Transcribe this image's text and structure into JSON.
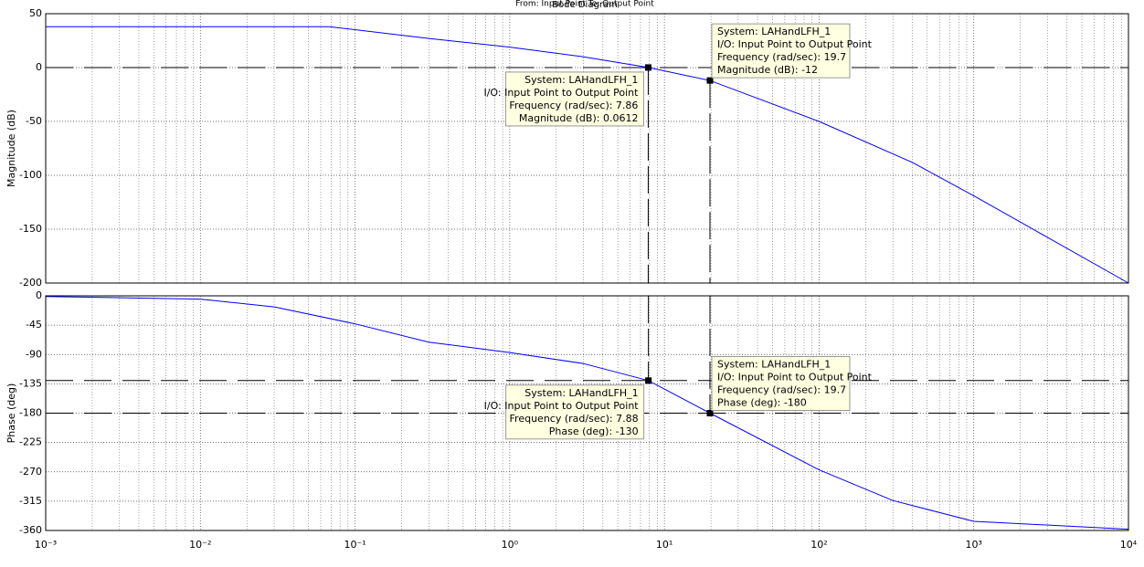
{
  "chart_data": [
    {
      "type": "line",
      "title": "Bode Diagram",
      "subtitle": "From: Input Point  To: Output Point",
      "ylabel": "Magnitude (dB)",
      "x": [
        0.001,
        0.01,
        0.068,
        0.3,
        1,
        3,
        7.86,
        19.7,
        100,
        400,
        1000,
        10000
      ],
      "values": [
        38,
        38,
        38,
        27,
        19,
        10,
        0.0612,
        -12,
        -50,
        -88,
        -119,
        -200
      ],
      "color": "#0000ff",
      "xscale": "log",
      "grid": true,
      "minor_grid": true,
      "xlim": [
        0.001,
        10000
      ],
      "xticks": [
        0.001,
        0.01,
        0.1,
        1,
        10,
        100,
        1000,
        10000
      ],
      "ylim": [
        -200,
        50
      ],
      "yticks": [
        50,
        0,
        -50,
        -100,
        -150,
        -200
      ],
      "ref_lines": [
        0
      ],
      "annotations": [
        {
          "x": 7.86,
          "y": 0.0612,
          "lines": [
            "System: LAHandLFH_1",
            "I/O: Input Point to Output Point",
            "Frequency (rad/sec): 7.86",
            "Magnitude (dB): 0.0612"
          ]
        },
        {
          "x": 19.7,
          "y": -12,
          "lines": [
            "System: LAHandLFH_1",
            "I/O: Input Point to Output Point",
            "Frequency (rad/sec): 19.7",
            "Magnitude (dB): -12"
          ]
        }
      ]
    },
    {
      "type": "line",
      "ylabel": "Phase (deg)",
      "x": [
        0.001,
        0.01,
        0.03,
        0.1,
        0.3,
        1,
        3,
        7.88,
        19.7,
        100,
        300,
        1000,
        10000
      ],
      "values": [
        -1,
        -5,
        -17,
        -43,
        -71,
        -87,
        -104,
        -130,
        -180,
        -267,
        -314,
        -346,
        -358
      ],
      "color": "#0000ff",
      "xscale": "log",
      "grid": true,
      "minor_grid": true,
      "xlim": [
        0.001,
        10000
      ],
      "xticks": [
        {
          "value": 0.001,
          "label": "10⁻³"
        },
        {
          "value": 0.01,
          "label": "10⁻²"
        },
        {
          "value": 0.1,
          "label": "10⁻¹"
        },
        {
          "value": 1,
          "label": "10⁰"
        },
        {
          "value": 10,
          "label": "10¹"
        },
        {
          "value": 100,
          "label": "10²"
        },
        {
          "value": 1000,
          "label": "10³"
        },
        {
          "value": 10000,
          "label": "10⁴"
        }
      ],
      "ylim": [
        -360,
        0
      ],
      "yticks": [
        0,
        -45,
        -90,
        -135,
        -180,
        -225,
        -270,
        -315,
        -360
      ],
      "ref_lines": [
        -130,
        -180
      ],
      "annotations": [
        {
          "x": 7.88,
          "y": -130,
          "lines": [
            "System: LAHandLFH_1",
            "I/O: Input Point to Output Point",
            "Frequency (rad/sec): 7.88",
            "Phase (deg): -130"
          ]
        },
        {
          "x": 19.7,
          "y": -180,
          "lines": [
            "System: LAHandLFH_1",
            "I/O: Input Point to Output Point",
            "Frequency (rad/sec): 19.7",
            "Phase (deg): -180"
          ]
        }
      ]
    }
  ]
}
